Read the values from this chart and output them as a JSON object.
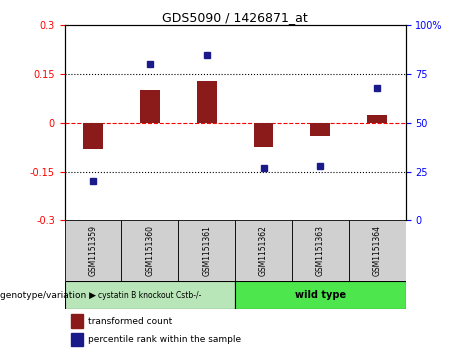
{
  "title": "GDS5090 / 1426871_at",
  "samples": [
    "GSM1151359",
    "GSM1151360",
    "GSM1151361",
    "GSM1151362",
    "GSM1151363",
    "GSM1151364"
  ],
  "bar_values": [
    -0.08,
    0.1,
    0.13,
    -0.075,
    -0.04,
    0.025
  ],
  "scatter_values": [
    20,
    80,
    85,
    27,
    28,
    68
  ],
  "ylim_left": [
    -0.3,
    0.3
  ],
  "ylim_right": [
    0,
    100
  ],
  "yticks_left": [
    -0.3,
    -0.15,
    0,
    0.15,
    0.3
  ],
  "yticks_right": [
    0,
    25,
    50,
    75,
    100
  ],
  "hline_dotted": [
    0.15,
    -0.15
  ],
  "bar_color": "#8B1A1A",
  "scatter_color": "#1a1a8b",
  "genotype_labels": [
    "cystatin B knockout Cstb-/-",
    "wild type"
  ],
  "group1_indices": [
    0,
    1,
    2
  ],
  "group2_indices": [
    3,
    4,
    5
  ],
  "group1_color": "#b8e6b8",
  "group2_color": "#4de64d",
  "legend_bar_label": "transformed count",
  "legend_scatter_label": "percentile rank within the sample",
  "xlabel_genotype": "genotype/variation"
}
